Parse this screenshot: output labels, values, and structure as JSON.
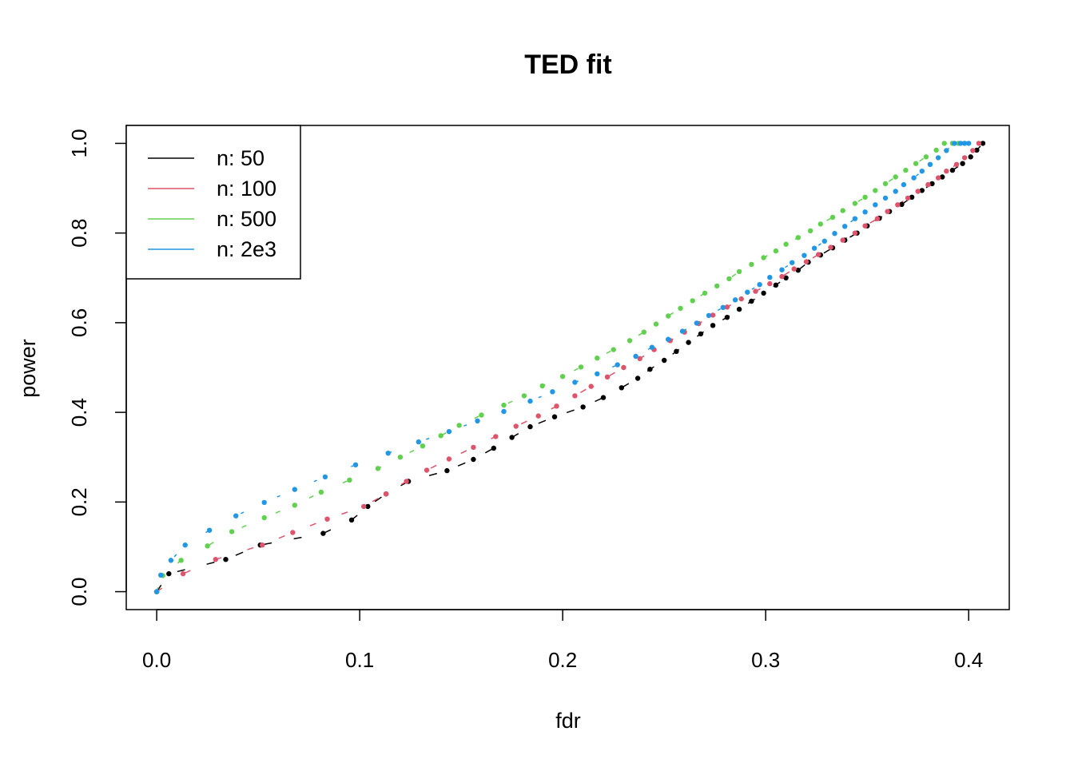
{
  "chart_data": {
    "type": "scatter",
    "title": "TED fit",
    "xlabel": "fdr",
    "ylabel": "power",
    "xlim": [
      -0.015,
      0.42
    ],
    "ylim": [
      -0.04,
      1.04
    ],
    "xticks": [
      0.0,
      0.1,
      0.2,
      0.3,
      0.4
    ],
    "xtick_labels": [
      "0.0",
      "0.1",
      "0.2",
      "0.3",
      "0.4"
    ],
    "yticks": [
      0.0,
      0.2,
      0.4,
      0.6,
      0.8,
      1.0
    ],
    "ytick_labels": [
      "0.0",
      "0.2",
      "0.4",
      "0.6",
      "0.8",
      "1.0"
    ],
    "legend_position": "top-left",
    "grid": false,
    "series": [
      {
        "name": "n: 50",
        "color": "#000000",
        "x": [
          0.0,
          0.006,
          0.034,
          0.051,
          0.082,
          0.096,
          0.104,
          0.113,
          0.124,
          0.143,
          0.156,
          0.166,
          0.175,
          0.184,
          0.196,
          0.21,
          0.22,
          0.229,
          0.237,
          0.243,
          0.25,
          0.256,
          0.262,
          0.268,
          0.274,
          0.281,
          0.287,
          0.293,
          0.299,
          0.305,
          0.31,
          0.316,
          0.321,
          0.327,
          0.333,
          0.339,
          0.345,
          0.35,
          0.356,
          0.361,
          0.367,
          0.372,
          0.377,
          0.382,
          0.387,
          0.392,
          0.397,
          0.401,
          0.404,
          0.407
        ],
        "y": [
          0.0,
          0.04,
          0.072,
          0.104,
          0.13,
          0.16,
          0.19,
          0.218,
          0.246,
          0.27,
          0.295,
          0.32,
          0.344,
          0.368,
          0.39,
          0.412,
          0.433,
          0.455,
          0.476,
          0.496,
          0.516,
          0.536,
          0.556,
          0.575,
          0.594,
          0.612,
          0.63,
          0.648,
          0.666,
          0.684,
          0.7,
          0.717,
          0.735,
          0.751,
          0.767,
          0.784,
          0.8,
          0.816,
          0.833,
          0.848,
          0.864,
          0.88,
          0.895,
          0.91,
          0.925,
          0.94,
          0.955,
          0.97,
          0.985,
          1.0
        ]
      },
      {
        "name": "n: 100",
        "color": "#DF536B",
        "x": [
          0.0,
          0.013,
          0.029,
          0.052,
          0.067,
          0.084,
          0.102,
          0.113,
          0.123,
          0.133,
          0.144,
          0.156,
          0.167,
          0.177,
          0.188,
          0.197,
          0.206,
          0.214,
          0.222,
          0.23,
          0.238,
          0.245,
          0.253,
          0.26,
          0.267,
          0.274,
          0.281,
          0.288,
          0.295,
          0.302,
          0.308,
          0.314,
          0.32,
          0.326,
          0.332,
          0.338,
          0.344,
          0.349,
          0.355,
          0.36,
          0.365,
          0.37,
          0.375,
          0.38,
          0.385,
          0.389,
          0.394,
          0.398,
          0.402,
          0.405
        ],
        "y": [
          0.0,
          0.04,
          0.072,
          0.104,
          0.132,
          0.162,
          0.19,
          0.218,
          0.246,
          0.271,
          0.296,
          0.322,
          0.346,
          0.369,
          0.392,
          0.414,
          0.437,
          0.458,
          0.479,
          0.5,
          0.52,
          0.54,
          0.56,
          0.579,
          0.598,
          0.617,
          0.635,
          0.653,
          0.67,
          0.687,
          0.703,
          0.72,
          0.736,
          0.752,
          0.768,
          0.784,
          0.8,
          0.816,
          0.832,
          0.848,
          0.863,
          0.878,
          0.893,
          0.908,
          0.923,
          0.938,
          0.953,
          0.968,
          0.984,
          1.0
        ]
      },
      {
        "name": "n: 500",
        "color": "#61D04F",
        "x": [
          0.0,
          0.003,
          0.012,
          0.025,
          0.037,
          0.053,
          0.068,
          0.081,
          0.095,
          0.109,
          0.12,
          0.131,
          0.14,
          0.149,
          0.16,
          0.171,
          0.181,
          0.19,
          0.2,
          0.209,
          0.217,
          0.225,
          0.233,
          0.24,
          0.246,
          0.252,
          0.258,
          0.264,
          0.27,
          0.276,
          0.282,
          0.287,
          0.293,
          0.299,
          0.305,
          0.31,
          0.316,
          0.322,
          0.327,
          0.333,
          0.338,
          0.344,
          0.349,
          0.354,
          0.359,
          0.364,
          0.369,
          0.374,
          0.379,
          0.384,
          0.388,
          0.392,
          0.395,
          0.398
        ],
        "y": [
          0.0,
          0.036,
          0.07,
          0.102,
          0.134,
          0.165,
          0.193,
          0.222,
          0.249,
          0.275,
          0.3,
          0.325,
          0.348,
          0.371,
          0.394,
          0.416,
          0.437,
          0.459,
          0.48,
          0.501,
          0.521,
          0.54,
          0.56,
          0.579,
          0.597,
          0.615,
          0.632,
          0.649,
          0.666,
          0.682,
          0.698,
          0.714,
          0.73,
          0.745,
          0.76,
          0.775,
          0.79,
          0.805,
          0.82,
          0.835,
          0.85,
          0.866,
          0.88,
          0.895,
          0.91,
          0.925,
          0.94,
          0.955,
          0.97,
          0.985,
          1.0,
          1.0,
          1.0,
          1.0
        ]
      },
      {
        "name": "n: 2e3",
        "color": "#2297E6",
        "x": [
          0.0,
          0.002,
          0.007,
          0.014,
          0.026,
          0.039,
          0.053,
          0.068,
          0.083,
          0.098,
          0.114,
          0.129,
          0.144,
          0.158,
          0.171,
          0.184,
          0.195,
          0.206,
          0.217,
          0.227,
          0.236,
          0.244,
          0.252,
          0.259,
          0.266,
          0.272,
          0.279,
          0.285,
          0.291,
          0.297,
          0.302,
          0.308,
          0.313,
          0.319,
          0.324,
          0.329,
          0.334,
          0.339,
          0.344,
          0.349,
          0.354,
          0.359,
          0.364,
          0.368,
          0.373,
          0.377,
          0.381,
          0.385,
          0.389,
          0.393,
          0.396,
          0.398,
          0.4
        ],
        "y": [
          0.0,
          0.037,
          0.07,
          0.104,
          0.137,
          0.169,
          0.199,
          0.228,
          0.256,
          0.283,
          0.309,
          0.334,
          0.357,
          0.381,
          0.402,
          0.425,
          0.446,
          0.467,
          0.486,
          0.506,
          0.525,
          0.545,
          0.563,
          0.581,
          0.599,
          0.616,
          0.634,
          0.651,
          0.668,
          0.685,
          0.701,
          0.718,
          0.734,
          0.75,
          0.766,
          0.782,
          0.799,
          0.815,
          0.832,
          0.847,
          0.863,
          0.878,
          0.893,
          0.908,
          0.923,
          0.938,
          0.953,
          0.968,
          0.984,
          1.0,
          1.0,
          1.0,
          1.0
        ]
      }
    ]
  }
}
